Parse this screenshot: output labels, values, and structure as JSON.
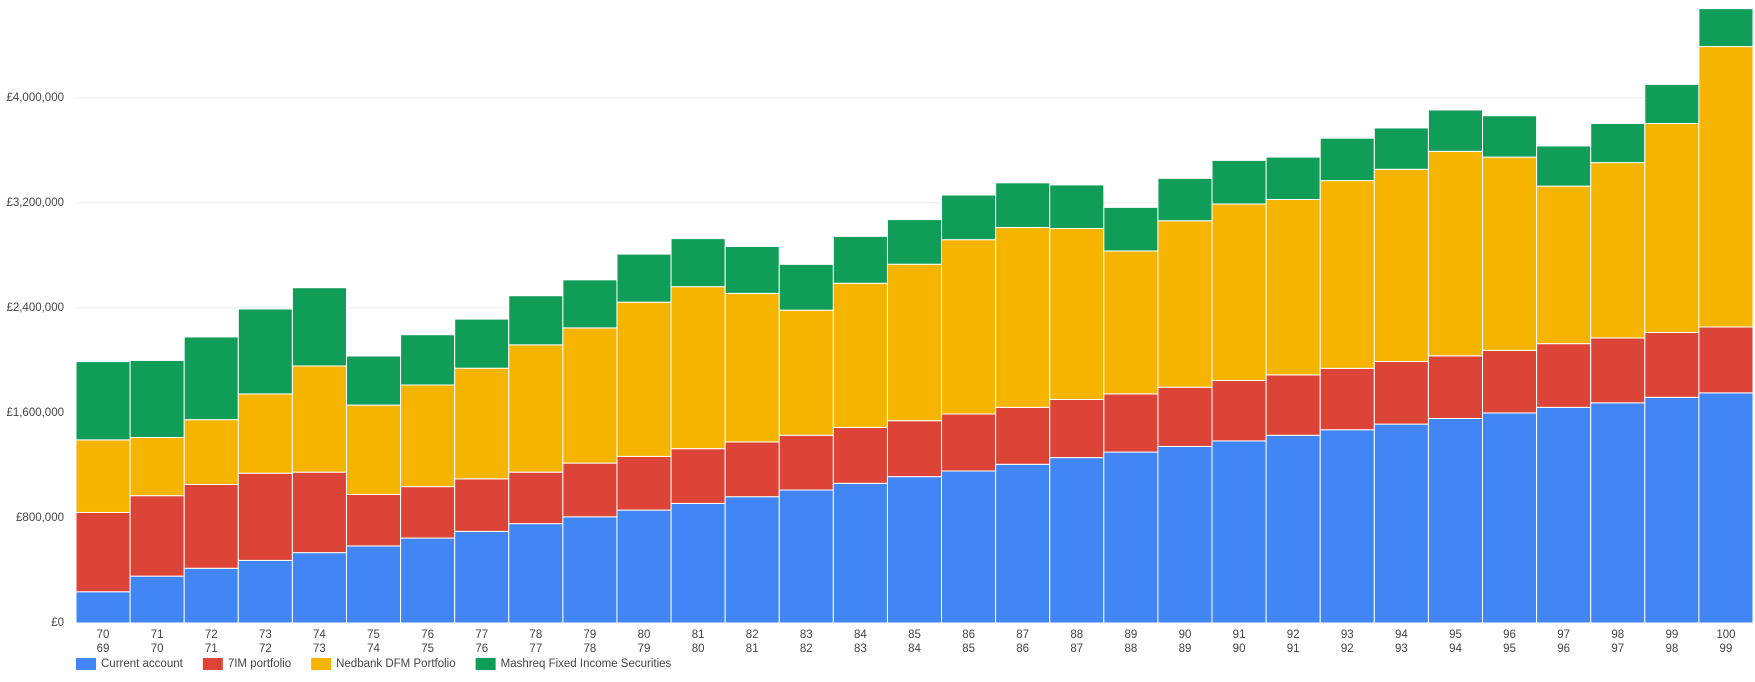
{
  "chart_data": {
    "type": "stacked_bar",
    "categories": [
      [
        "70",
        "69"
      ],
      [
        "71",
        "70"
      ],
      [
        "72",
        "71"
      ],
      [
        "73",
        "72"
      ],
      [
        "74",
        "73"
      ],
      [
        "75",
        "74"
      ],
      [
        "76",
        "75"
      ],
      [
        "77",
        "76"
      ],
      [
        "78",
        "77"
      ],
      [
        "79",
        "78"
      ],
      [
        "80",
        "79"
      ],
      [
        "81",
        "80"
      ],
      [
        "82",
        "81"
      ],
      [
        "83",
        "82"
      ],
      [
        "84",
        "83"
      ],
      [
        "85",
        "84"
      ],
      [
        "86",
        "85"
      ],
      [
        "87",
        "86"
      ],
      [
        "88",
        "87"
      ],
      [
        "89",
        "88"
      ],
      [
        "90",
        "89"
      ],
      [
        "91",
        "90"
      ],
      [
        "92",
        "91"
      ],
      [
        "93",
        "92"
      ],
      [
        "94",
        "93"
      ],
      [
        "95",
        "94"
      ],
      [
        "96",
        "95"
      ],
      [
        "97",
        "96"
      ],
      [
        "98",
        "97"
      ],
      [
        "99",
        "98"
      ],
      [
        "100",
        "99"
      ]
    ],
    "series": [
      {
        "name": "Current account",
        "color": "#4285f4",
        "values": [
          238000,
          357000,
          417000,
          477000,
          536000,
          587000,
          647000,
          698000,
          757000,
          809000,
          860000,
          911000,
          962000,
          1013000,
          1064000,
          1115000,
          1158000,
          1209000,
          1260000,
          1302000,
          1345000,
          1387000,
          1430000,
          1472000,
          1515000,
          1558000,
          1600000,
          1643000,
          1677000,
          1719000,
          1753000
        ]
      },
      {
        "name": "7IM portfolio",
        "color": "#db4437",
        "values": [
          604000,
          613000,
          638000,
          664000,
          613000,
          392000,
          392000,
          400000,
          392000,
          409000,
          409000,
          417000,
          417000,
          417000,
          426000,
          426000,
          434000,
          434000,
          443000,
          443000,
          451000,
          460000,
          460000,
          468000,
          477000,
          477000,
          477000,
          485000,
          494000,
          494000,
          502000
        ]
      },
      {
        "name": "Nedbank DFM Portfolio",
        "color": "#f4b400",
        "values": [
          553000,
          443000,
          494000,
          604000,
          809000,
          681000,
          774000,
          843000,
          970000,
          1030000,
          1175000,
          1234000,
          1132000,
          953000,
          1098000,
          1192000,
          1328000,
          1370000,
          1302000,
          1089000,
          1268000,
          1345000,
          1336000,
          1430000,
          1464000,
          1558000,
          1472000,
          1200000,
          1336000,
          1592000,
          2136000
        ]
      },
      {
        "name": "Mashreq Fixed Income Securities",
        "color": "#0f9d58",
        "values": [
          596000,
          587000,
          630000,
          647000,
          596000,
          374000,
          383000,
          374000,
          374000,
          366000,
          366000,
          366000,
          357000,
          349000,
          357000,
          340000,
          340000,
          340000,
          332000,
          332000,
          323000,
          332000,
          323000,
          323000,
          315000,
          315000,
          315000,
          306000,
          298000,
          298000,
          289000
        ]
      }
    ],
    "ylim": [
      0,
      4700000
    ],
    "yticks": [
      {
        "value": 0,
        "label": "£0"
      },
      {
        "value": 800000,
        "label": "£800,000"
      },
      {
        "value": 1600000,
        "label": "£1,600,000"
      },
      {
        "value": 2400000,
        "label": "£2,400,000"
      },
      {
        "value": 3200000,
        "label": "£3,200,000"
      },
      {
        "value": 4000000,
        "label": "£4,000,000"
      }
    ],
    "grid": true,
    "legend": "bottom"
  }
}
